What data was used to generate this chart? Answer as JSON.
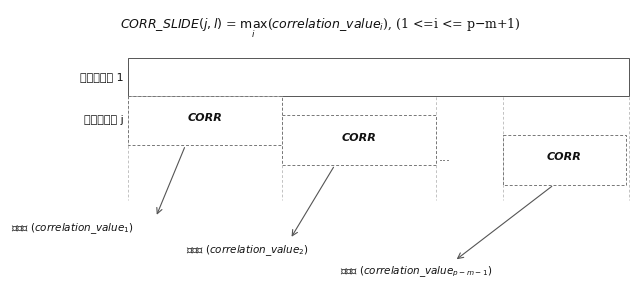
{
  "bg_color": "#f0f0f0",
  "seq1_label": "シーケンス 1",
  "seqj_label": "シーケンス j",
  "corr_label": "CORR",
  "dots": "...",
  "formula_parts": {
    "left": "CORR_SLIDE(j,l) = ",
    "max_part": "max",
    "sub_i": "i",
    "right": "(correlation_value",
    "subscript_i": "i",
    "tail": "), (1 <= i <= p - m + 1)"
  }
}
